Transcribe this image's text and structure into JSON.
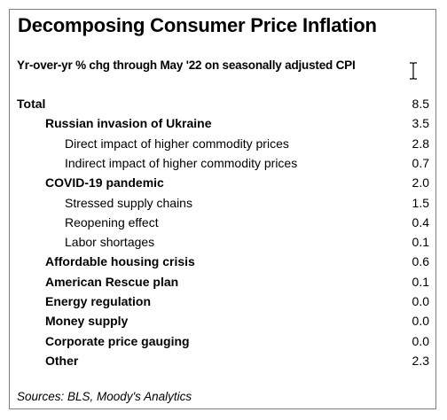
{
  "chart_data": {
    "type": "table",
    "title": "Decomposing Consumer Price Inflation",
    "subtitle": "Yr-over-yr % chg through May '22 on seasonally adjusted CPI",
    "rows": [
      {
        "label": "Total",
        "value": "8.5",
        "level": 0
      },
      {
        "label": "Russian invasion of Ukraine",
        "value": "3.5",
        "level": 1
      },
      {
        "label": "Direct impact of higher commodity prices",
        "value": "2.8",
        "level": 2
      },
      {
        "label": "Indirect impact of higher commodity prices",
        "value": "0.7",
        "level": 2
      },
      {
        "label": "COVID-19 pandemic",
        "value": "2.0",
        "level": 1
      },
      {
        "label": "Stressed supply chains",
        "value": "1.5",
        "level": 2
      },
      {
        "label": "Reopening effect",
        "value": "0.4",
        "level": 2
      },
      {
        "label": "Labor shortages",
        "value": "0.1",
        "level": 2
      },
      {
        "label": "Affordable housing crisis",
        "value": "0.6",
        "level": 1
      },
      {
        "label": "American Rescue plan",
        "value": "0.1",
        "level": 1
      },
      {
        "label": "Energy regulation",
        "value": "0.0",
        "level": 1
      },
      {
        "label": "Money supply",
        "value": "0.0",
        "level": 1
      },
      {
        "label": "Corporate price gauging",
        "value": "0.0",
        "level": 1
      },
      {
        "label": "Other",
        "value": "2.3",
        "level": 1
      }
    ],
    "source": "Sources: BLS, Moody's Analytics"
  },
  "colors": {
    "text": "#000000",
    "border": "#7f7f7f",
    "background": "#ffffff"
  },
  "icons": {
    "cursor": "text-cursor-icon"
  }
}
